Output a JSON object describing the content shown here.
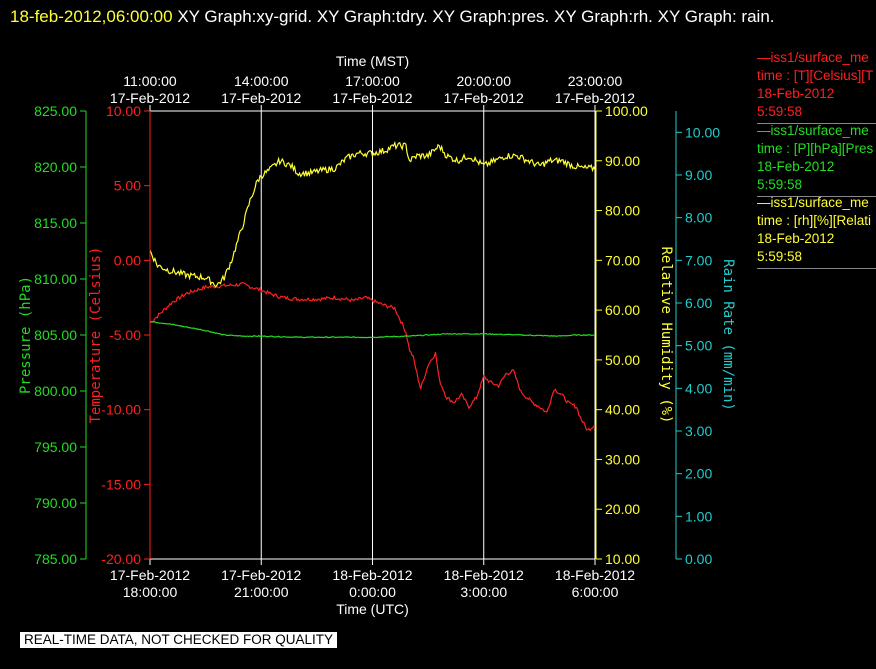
{
  "title": {
    "timestamp": "18-feb-2012,06:00:00",
    "text": " XY Graph:xy-grid.  XY Graph:tdry.  XY Graph:pres.  XY Graph:rh.  XY Graph: rain."
  },
  "legend": [
    {
      "line1": "—iss1/surface_me",
      "line2": "time : [T][Celsius][T",
      "line3": "18-Feb-2012",
      "line4": "5:59:58",
      "color": "#ff2020"
    },
    {
      "line1": "—iss1/surface_me",
      "line2": "time : [P][hPa][Pres",
      "line3": "18-Feb-2012",
      "line4": "5:59:58",
      "color": "#22dd22"
    },
    {
      "line1": "—iss1/surface_me",
      "line2": "time : [rh][%][Relati",
      "line3": "18-Feb-2012",
      "line4": "5:59:58",
      "color": "#ffff33"
    }
  ],
  "footer": "REAL-TIME DATA, NOT CHECKED FOR QUALITY",
  "chart_data": {
    "type": "line",
    "colors": {
      "temperature": "#ff2020",
      "pressure": "#22dd22",
      "humidity": "#ffff33",
      "rain": "#22cccc",
      "grid": "#ffffff"
    },
    "top_axis": {
      "label": "Time (MST)",
      "ticks": [
        {
          "date": "17-Feb-2012",
          "time": "11:00:00"
        },
        {
          "date": "17-Feb-2012",
          "time": "14:00:00"
        },
        {
          "date": "17-Feb-2012",
          "time": "17:00:00"
        },
        {
          "date": "17-Feb-2012",
          "time": "20:00:00"
        },
        {
          "date": "17-Feb-2012",
          "time": "23:00:00"
        }
      ]
    },
    "bottom_axis": {
      "label": "Time (UTC)",
      "xlim_hours": [
        0,
        12
      ],
      "ticks": [
        {
          "date": "17-Feb-2012",
          "time": "18:00:00"
        },
        {
          "date": "17-Feb-2012",
          "time": "21:00:00"
        },
        {
          "date": "18-Feb-2012",
          "time": "0:00:00"
        },
        {
          "date": "18-Feb-2012",
          "time": "3:00:00"
        },
        {
          "date": "18-Feb-2012",
          "time": "6:00:00"
        }
      ]
    },
    "axes": {
      "pressure": {
        "label": "Pressure (hPa)",
        "ylim": [
          785,
          825
        ],
        "ticks": [
          "785.00",
          "790.00",
          "795.00",
          "800.00",
          "805.00",
          "810.00",
          "815.00",
          "820.00",
          "825.00"
        ]
      },
      "temperature": {
        "label": "Temperature (Celsius)",
        "ylim": [
          -20,
          10
        ],
        "ticks": [
          "-20.00",
          "-15.00",
          "-10.00",
          "-5.00",
          "0.00",
          "5.00",
          "10.00"
        ]
      },
      "humidity": {
        "label": "Relative Humidity (%)",
        "ylim": [
          10,
          100
        ],
        "ticks": [
          "10.00",
          "20.00",
          "30.00",
          "40.00",
          "50.00",
          "60.00",
          "70.00",
          "80.00",
          "90.00",
          "100.00"
        ]
      },
      "rain": {
        "label": "Rain Rate (mm/min)",
        "ylim": [
          0,
          10.5
        ],
        "ticks": [
          "0.00",
          "1.00",
          "2.00",
          "3.00",
          "4.00",
          "5.00",
          "6.00",
          "7.00",
          "8.00",
          "9.00",
          "10.00"
        ]
      }
    },
    "series": [
      {
        "name": "temperature",
        "axis": "temperature",
        "x": [
          0,
          0.3,
          0.6,
          1.0,
          1.5,
          2.0,
          2.5,
          3.0,
          3.3,
          3.6,
          4.0,
          4.5,
          5.0,
          5.5,
          5.8,
          6.0,
          6.3,
          6.6,
          6.9,
          7.0,
          7.1,
          7.2,
          7.3,
          7.5,
          7.7,
          7.8,
          8.0,
          8.2,
          8.4,
          8.6,
          8.8,
          9.0,
          9.2,
          9.4,
          9.6,
          9.8,
          10.0,
          10.3,
          10.5,
          10.7,
          10.9,
          11.1,
          11.3,
          11.5,
          11.6,
          11.8,
          12.0
        ],
        "y": [
          -4.2,
          -3.5,
          -2.8,
          -2.2,
          -1.8,
          -1.7,
          -1.6,
          -2.0,
          -2.3,
          -2.5,
          -2.6,
          -2.6,
          -2.5,
          -2.7,
          -2.5,
          -2.7,
          -3.0,
          -3.2,
          -4.8,
          -6.0,
          -6.5,
          -7.6,
          -8.6,
          -7.0,
          -6.2,
          -8.0,
          -9.2,
          -9.5,
          -9.0,
          -9.8,
          -9.2,
          -7.8,
          -8.2,
          -8.4,
          -7.6,
          -7.4,
          -8.8,
          -9.5,
          -9.8,
          -10.2,
          -8.6,
          -9.0,
          -9.6,
          -9.8,
          -10.5,
          -11.4,
          -11.0
        ]
      },
      {
        "name": "pressure",
        "axis": "pressure",
        "x": [
          0,
          0.5,
          1.0,
          1.5,
          2.0,
          2.5,
          3.0,
          4.0,
          5.0,
          6.0,
          7.0,
          8.0,
          9.0,
          10.0,
          11.0,
          11.5,
          12.0
        ],
        "y": [
          806.2,
          806.0,
          805.7,
          805.4,
          805.0,
          804.9,
          804.9,
          804.8,
          804.8,
          804.8,
          804.9,
          805.1,
          805.1,
          805.0,
          804.9,
          805.0,
          805.0
        ]
      },
      {
        "name": "humidity",
        "axis": "humidity",
        "x": [
          0,
          0.2,
          0.5,
          1.0,
          1.5,
          1.8,
          2.0,
          2.2,
          2.5,
          2.7,
          2.9,
          3.0,
          3.2,
          3.5,
          3.8,
          4.0,
          4.3,
          4.6,
          5.0,
          5.3,
          5.6,
          6.0,
          6.3,
          6.6,
          6.9,
          7.0,
          7.2,
          7.5,
          7.8,
          8.0,
          8.3,
          8.6,
          9.0,
          9.3,
          9.6,
          9.9,
          10.2,
          10.5,
          10.8,
          11.1,
          11.4,
          11.7,
          12.0
        ],
        "y": [
          72,
          69,
          68,
          67,
          66.5,
          65,
          66.5,
          70,
          77,
          82,
          86,
          87,
          88,
          90,
          89,
          87.5,
          87.5,
          88,
          88.5,
          90.5,
          91.5,
          91.5,
          92,
          93,
          93,
          90,
          91,
          91,
          93,
          91,
          90,
          91,
          89,
          90,
          91,
          91,
          90,
          89,
          90,
          90,
          89,
          88.5,
          88.5
        ]
      }
    ]
  }
}
